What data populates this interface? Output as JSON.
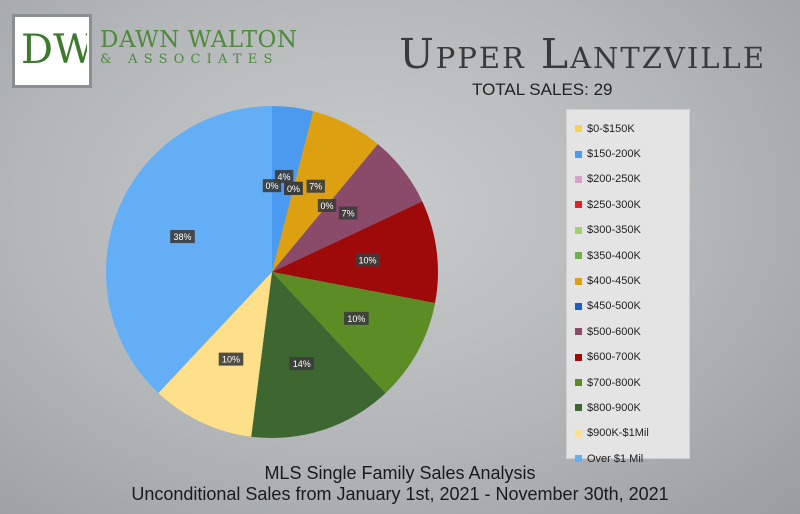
{
  "brand": {
    "logo_letters": "DW",
    "name": "DAWN WALTON",
    "sub": "& ASSOCIATES"
  },
  "title": "Upper Lantzville",
  "subtitle": "TOTAL SALES: 29",
  "footer": {
    "line1": "MLS Single Family Sales Analysis",
    "line2": "Unconditional Sales from January 1st, 2021 - November 30th, 2021"
  },
  "chart_data": {
    "type": "pie",
    "title": "Upper Lantzville",
    "categories": [
      "$0-$150K",
      "$150-200K",
      "$200-250K",
      "$250-300K",
      "$300-350K",
      "$350-400K",
      "$400-450K",
      "$450-500K",
      "$500-600K",
      "$600-700K",
      "$700-800K",
      "$800-900K",
      "$900K-$1Mil",
      "Over $1 Mil"
    ],
    "values": [
      0,
      4,
      0,
      0,
      0,
      0,
      7,
      0,
      7,
      10,
      10,
      14,
      10,
      38
    ],
    "labels": [
      "0%",
      "4%",
      "0%",
      "0%",
      "0%",
      "0%",
      "7%",
      "0%",
      "7%",
      "10%",
      "10%",
      "14%",
      "10%",
      "38%"
    ],
    "colors": [
      "#f5d34a",
      "#4a9bf0",
      "#d7a2c8",
      "#e0202a",
      "#9fd26a",
      "#6fb24a",
      "#dca010",
      "#1f5fc0",
      "#8a4a6a",
      "#9e0a0a",
      "#5c8c24",
      "#3e6630",
      "#ffe08a",
      "#64aef5"
    ],
    "legend_position": "right"
  }
}
